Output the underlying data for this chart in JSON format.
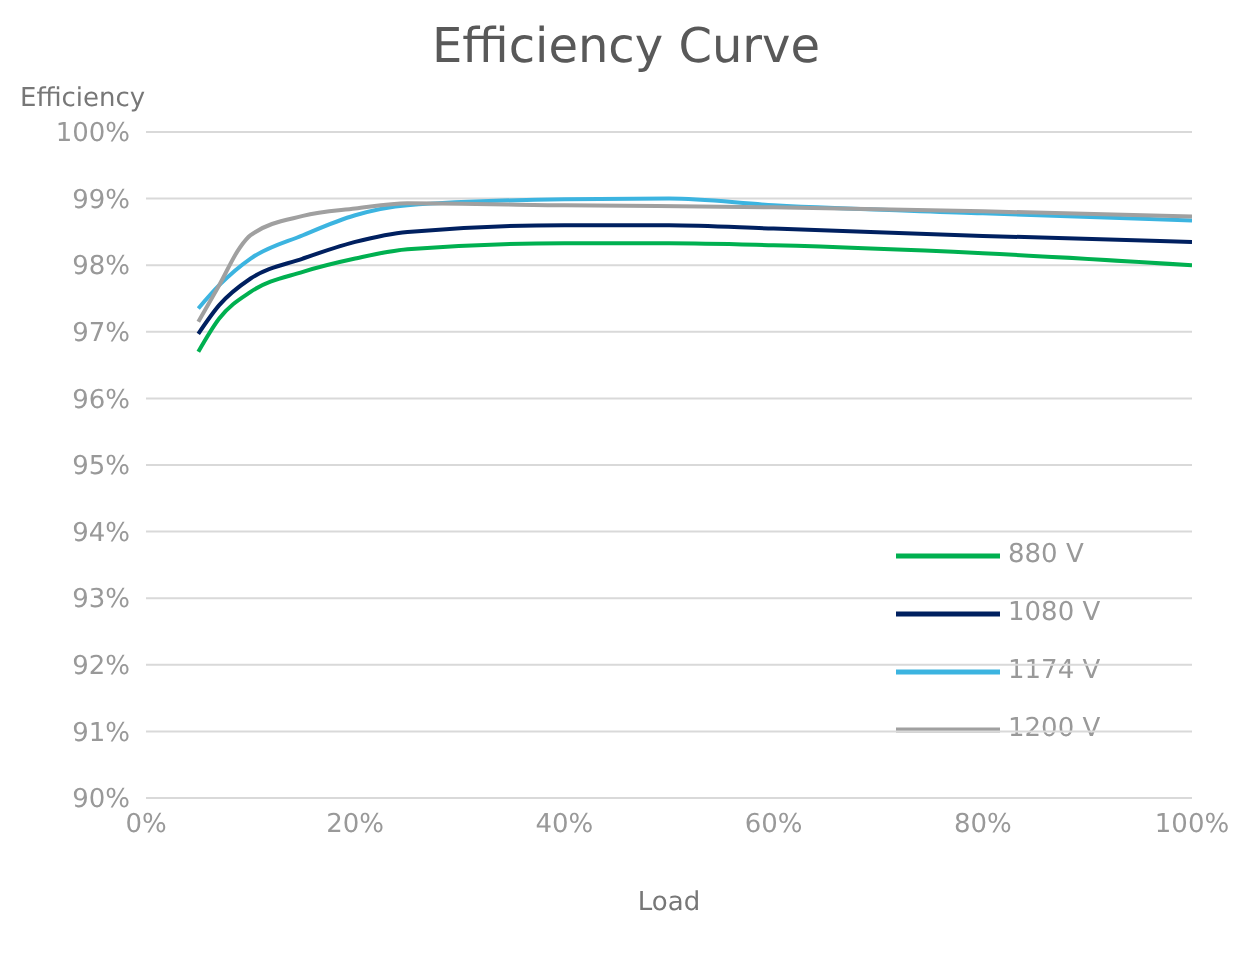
{
  "chart_data": {
    "type": "line",
    "title": "Efficiency Curve",
    "xlabel": "Load",
    "ylabel": "Efficiency",
    "xlim": [
      0,
      100
    ],
    "xticks": [
      {
        "value": 0,
        "label": "0%"
      },
      {
        "value": 20,
        "label": "20%"
      },
      {
        "value": 40,
        "label": "40%"
      },
      {
        "value": 60,
        "label": "60%"
      },
      {
        "value": 80,
        "label": "80%"
      },
      {
        "value": 100,
        "label": "100%"
      }
    ],
    "ylim": [
      90,
      100
    ],
    "yticks": [
      {
        "value": 90,
        "label": "90%"
      },
      {
        "value": 91,
        "label": "91%"
      },
      {
        "value": 92,
        "label": "92%"
      },
      {
        "value": 93,
        "label": "93%"
      },
      {
        "value": 94,
        "label": "94%"
      },
      {
        "value": 95,
        "label": "95%"
      },
      {
        "value": 96,
        "label": "96%"
      },
      {
        "value": 97,
        "label": "97%"
      },
      {
        "value": 98,
        "label": "98%"
      },
      {
        "value": 99,
        "label": "99%"
      },
      {
        "value": 100,
        "label": "100%"
      }
    ],
    "grid": "y",
    "legend": "bottom right",
    "marker": "none",
    "series": [
      {
        "name": "880 V",
        "color": "#00b050",
        "x": [
          5,
          7,
          10,
          15,
          20,
          25,
          40,
          50,
          60,
          80,
          100
        ],
        "values": [
          96.7,
          97.2,
          97.6,
          97.9,
          98.1,
          98.24,
          98.33,
          98.33,
          98.3,
          98.18,
          98.0
        ]
      },
      {
        "name": "1080 V",
        "color": "#002060",
        "x": [
          5,
          7,
          10,
          15,
          20,
          25,
          40,
          50,
          60,
          80,
          100
        ],
        "values": [
          96.97,
          97.4,
          97.8,
          98.1,
          98.35,
          98.5,
          98.6,
          98.6,
          98.55,
          98.44,
          98.35
        ]
      },
      {
        "name": "1174 V",
        "color": "#3cb4e0",
        "x": [
          5,
          7,
          10,
          15,
          20,
          25,
          40,
          50,
          60,
          80,
          100
        ],
        "values": [
          97.35,
          97.7,
          98.1,
          98.45,
          98.75,
          98.9,
          98.99,
          99.0,
          98.9,
          98.78,
          98.67
        ]
      },
      {
        "name": "1200 V",
        "color": "#a0a0a0",
        "x": [
          5,
          7,
          9,
          10,
          15,
          20,
          25,
          40,
          60,
          80,
          100
        ],
        "values": [
          97.15,
          97.7,
          98.27,
          98.45,
          98.74,
          98.85,
          98.93,
          98.9,
          98.87,
          98.81,
          98.73
        ]
      }
    ]
  }
}
